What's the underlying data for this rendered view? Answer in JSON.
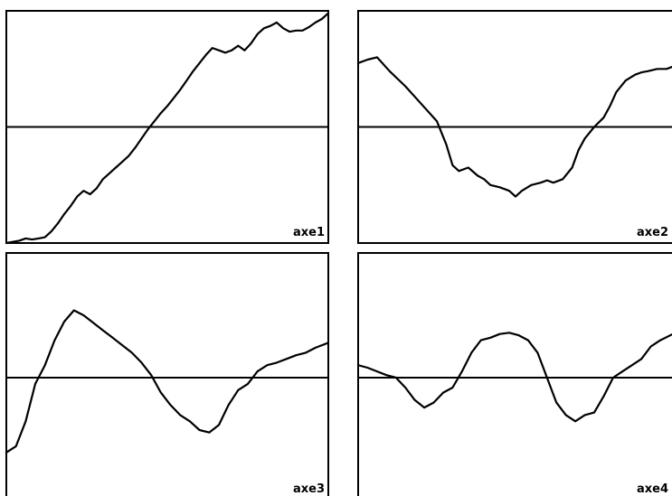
{
  "chart_data": [
    {
      "type": "line",
      "label": "axe1",
      "baseline": 0,
      "ylim": [
        -1,
        1
      ],
      "x": [
        0,
        0.02,
        0.04,
        0.06,
        0.08,
        0.1,
        0.12,
        0.14,
        0.16,
        0.18,
        0.2,
        0.22,
        0.24,
        0.26,
        0.28,
        0.3,
        0.32,
        0.34,
        0.36,
        0.38,
        0.4,
        0.42,
        0.44,
        0.46,
        0.48,
        0.5,
        0.52,
        0.54,
        0.56,
        0.58,
        0.6,
        0.62,
        0.64,
        0.66,
        0.68,
        0.7,
        0.72,
        0.74,
        0.76,
        0.78,
        0.8,
        0.82,
        0.84,
        0.86,
        0.88,
        0.9,
        0.92,
        0.94,
        0.96,
        0.98,
        1.0
      ],
      "y": [
        -1.0,
        -0.99,
        -0.98,
        -0.96,
        -0.97,
        -0.96,
        -0.95,
        -0.9,
        -0.83,
        -0.75,
        -0.68,
        -0.6,
        -0.55,
        -0.58,
        -0.53,
        -0.45,
        -0.4,
        -0.35,
        -0.3,
        -0.25,
        -0.18,
        -0.1,
        -0.02,
        0.05,
        0.12,
        0.18,
        0.25,
        0.32,
        0.4,
        0.48,
        0.55,
        0.62,
        0.68,
        0.66,
        0.64,
        0.66,
        0.7,
        0.66,
        0.72,
        0.8,
        0.85,
        0.87,
        0.9,
        0.85,
        0.82,
        0.83,
        0.83,
        0.86,
        0.9,
        0.93,
        0.98
      ]
    },
    {
      "type": "line",
      "label": "axe2",
      "baseline": 0,
      "ylim": [
        -1,
        1
      ],
      "x": [
        0,
        0.03,
        0.06,
        0.1,
        0.15,
        0.2,
        0.25,
        0.28,
        0.3,
        0.32,
        0.35,
        0.38,
        0.4,
        0.42,
        0.45,
        0.48,
        0.5,
        0.52,
        0.55,
        0.58,
        0.6,
        0.62,
        0.65,
        0.68,
        0.7,
        0.72,
        0.75,
        0.78,
        0.8,
        0.82,
        0.85,
        0.88,
        0.9,
        0.92,
        0.95,
        0.98,
        1.0
      ],
      "y": [
        0.55,
        0.58,
        0.6,
        0.48,
        0.35,
        0.2,
        0.05,
        -0.15,
        -0.33,
        -0.38,
        -0.35,
        -0.42,
        -0.45,
        -0.5,
        -0.52,
        -0.55,
        -0.6,
        -0.55,
        -0.5,
        -0.48,
        -0.46,
        -0.48,
        -0.45,
        -0.35,
        -0.2,
        -0.1,
        0.0,
        0.08,
        0.18,
        0.3,
        0.4,
        0.45,
        0.47,
        0.48,
        0.5,
        0.5,
        0.52
      ]
    },
    {
      "type": "line",
      "label": "axe3",
      "baseline": 0,
      "ylim": [
        -1,
        1
      ],
      "x": [
        0,
        0.03,
        0.06,
        0.09,
        0.12,
        0.15,
        0.18,
        0.21,
        0.24,
        0.27,
        0.3,
        0.33,
        0.36,
        0.39,
        0.42,
        0.45,
        0.48,
        0.51,
        0.54,
        0.57,
        0.6,
        0.63,
        0.66,
        0.69,
        0.72,
        0.75,
        0.78,
        0.81,
        0.84,
        0.87,
        0.9,
        0.93,
        0.96,
        1.0
      ],
      "y": [
        -0.6,
        -0.55,
        -0.35,
        -0.05,
        0.1,
        0.3,
        0.45,
        0.54,
        0.5,
        0.44,
        0.38,
        0.32,
        0.26,
        0.2,
        0.12,
        0.02,
        -0.12,
        -0.22,
        -0.3,
        -0.35,
        -0.42,
        -0.44,
        -0.38,
        -0.22,
        -0.1,
        -0.05,
        0.05,
        0.1,
        0.12,
        0.15,
        0.18,
        0.2,
        0.24,
        0.28
      ]
    },
    {
      "type": "line",
      "label": "axe4",
      "baseline": 0,
      "ylim": [
        -1,
        1
      ],
      "x": [
        0,
        0.03,
        0.06,
        0.09,
        0.12,
        0.15,
        0.18,
        0.21,
        0.24,
        0.27,
        0.3,
        0.33,
        0.36,
        0.39,
        0.42,
        0.45,
        0.48,
        0.51,
        0.54,
        0.57,
        0.6,
        0.63,
        0.66,
        0.69,
        0.72,
        0.75,
        0.78,
        0.81,
        0.84,
        0.87,
        0.9,
        0.93,
        0.96,
        1.0
      ],
      "y": [
        0.1,
        0.08,
        0.05,
        0.02,
        0.0,
        -0.08,
        -0.18,
        -0.24,
        -0.2,
        -0.12,
        -0.08,
        0.05,
        0.2,
        0.3,
        0.32,
        0.35,
        0.36,
        0.34,
        0.3,
        0.2,
        0.0,
        -0.2,
        -0.3,
        -0.35,
        -0.3,
        -0.28,
        -0.15,
        0.0,
        0.05,
        0.1,
        0.15,
        0.25,
        0.3,
        0.35
      ]
    }
  ]
}
